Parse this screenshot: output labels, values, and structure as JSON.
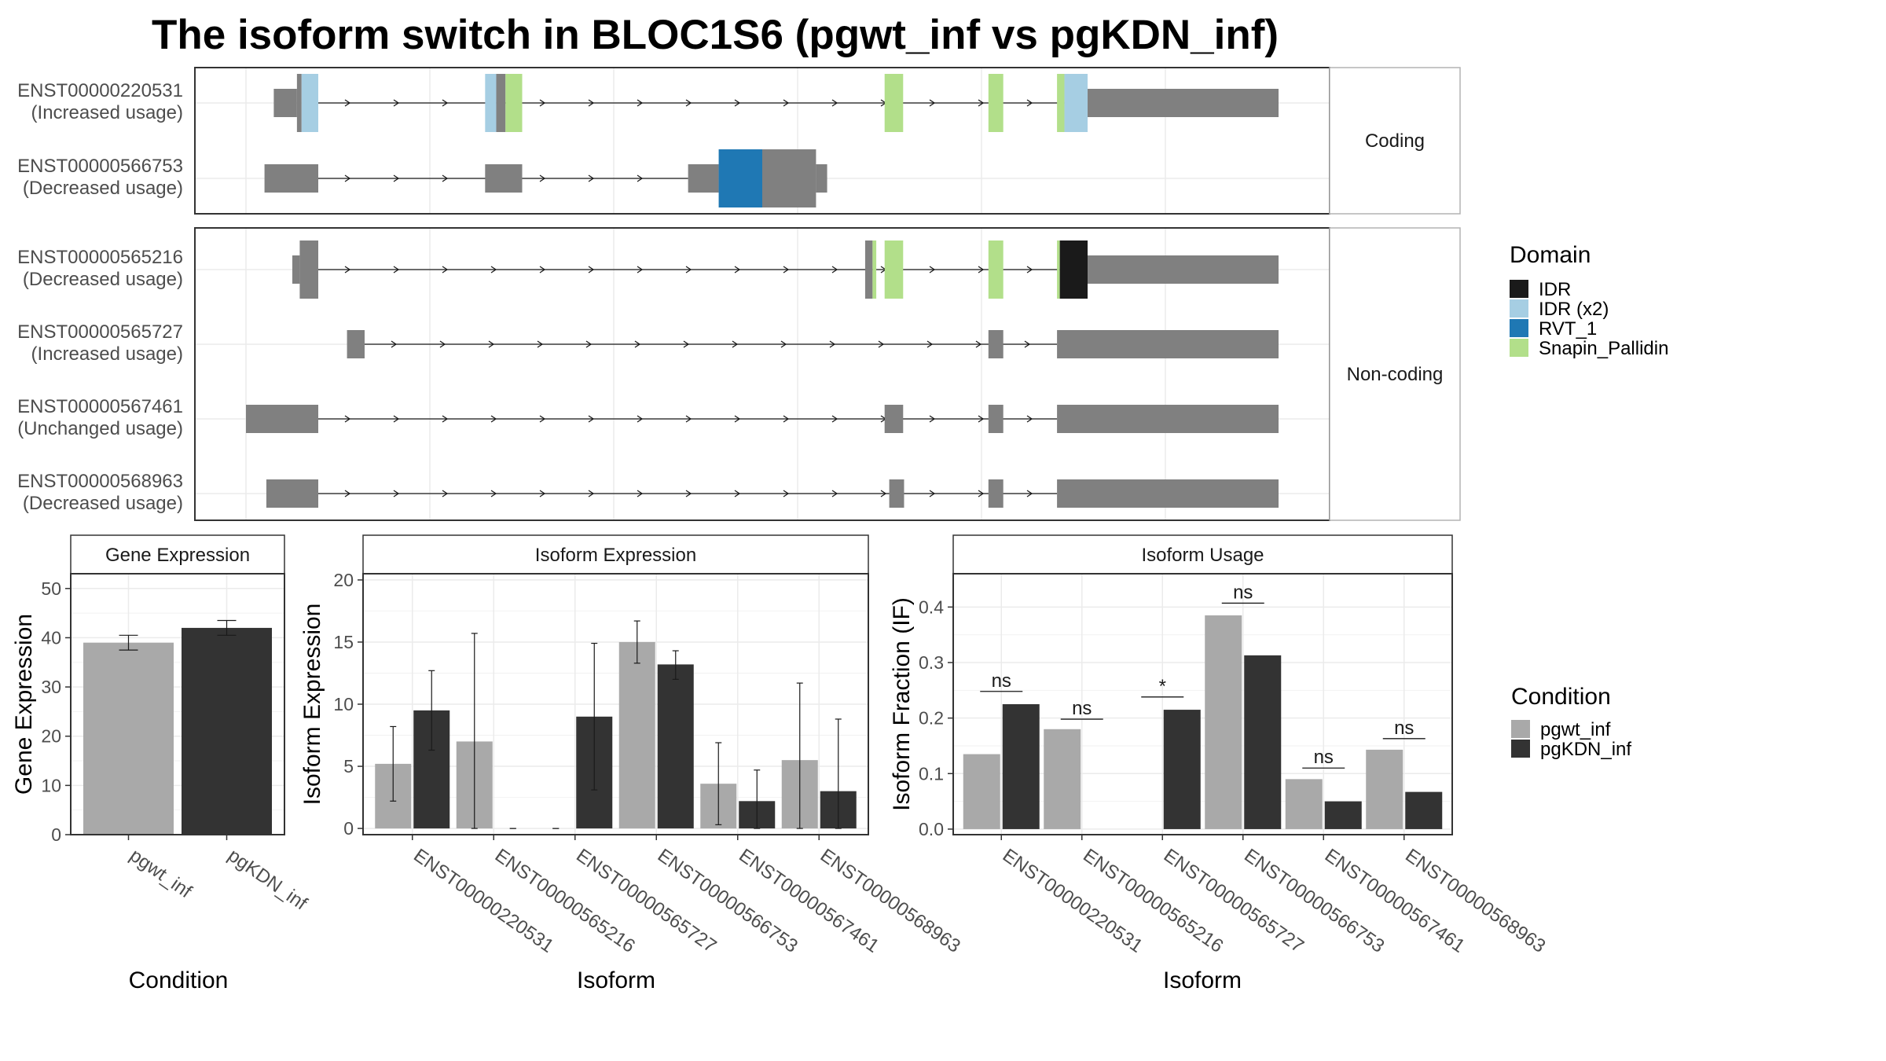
{
  "title": "The isoform switch in BLOC1S6 (pgwt_inf vs pgKDN_inf)",
  "colors": {
    "IDR": "#1a1a1a",
    "IDR (x2)": "#a6cee3",
    "RVT_1": "#1f78b4",
    "Snapin_Pallidin": "#b2df8a",
    "exon": "#808080",
    "pgwt_inf": "#a9a9a9",
    "pgKDN_inf": "#333333"
  },
  "structure": {
    "facets": [
      {
        "label": "Coding",
        "rows": [
          0,
          1
        ]
      },
      {
        "label": "Non-coding",
        "rows": [
          2,
          3,
          4,
          5
        ]
      }
    ],
    "transcripts": [
      {
        "id": "ENST00000220531",
        "usage": "(Increased usage)",
        "segments": [
          {
            "s": 30,
            "e": 55,
            "h": "half",
            "c": "exon"
          },
          {
            "s": 55,
            "e": 60,
            "h": "full",
            "c": "exon"
          },
          {
            "s": 60,
            "e": 78,
            "h": "full",
            "c": "IDR (x2)"
          },
          {
            "s": 258,
            "e": 270,
            "h": "full",
            "c": "IDR (x2)"
          },
          {
            "s": 270,
            "e": 280,
            "h": "full",
            "c": "exon"
          },
          {
            "s": 280,
            "e": 298,
            "h": "full",
            "c": "Snapin_Pallidin"
          },
          {
            "s": 689,
            "e": 709,
            "h": "full",
            "c": "Snapin_Pallidin"
          },
          {
            "s": 801,
            "e": 817,
            "h": "full",
            "c": "Snapin_Pallidin"
          },
          {
            "s": 875,
            "e": 883,
            "h": "full",
            "c": "Snapin_Pallidin"
          },
          {
            "s": 883,
            "e": 908,
            "h": "full",
            "c": "IDR (x2)"
          },
          {
            "s": 908,
            "e": 1114,
            "h": "half",
            "c": "exon"
          }
        ],
        "intron": [
          78,
          908
        ]
      },
      {
        "id": "ENST00000566753",
        "usage": "(Decreased usage)",
        "segments": [
          {
            "s": 20,
            "e": 78,
            "h": "half",
            "c": "exon"
          },
          {
            "s": 258,
            "e": 298,
            "h": "half",
            "c": "exon"
          },
          {
            "s": 477,
            "e": 510,
            "h": "half",
            "c": "exon"
          },
          {
            "s": 510,
            "e": 557,
            "h": "full",
            "c": "RVT_1"
          },
          {
            "s": 557,
            "e": 615,
            "h": "full",
            "c": "exon"
          },
          {
            "s": 615,
            "e": 627,
            "h": "half",
            "c": "exon"
          }
        ],
        "intron": [
          78,
          477
        ]
      },
      {
        "id": "ENST00000565216",
        "usage": "(Decreased usage)",
        "segments": [
          {
            "s": 50,
            "e": 58,
            "h": "half",
            "c": "exon"
          },
          {
            "s": 58,
            "e": 78,
            "h": "full",
            "c": "exon"
          },
          {
            "s": 668,
            "e": 676,
            "h": "full",
            "c": "exon"
          },
          {
            "s": 676,
            "e": 680,
            "h": "full",
            "c": "Snapin_Pallidin"
          },
          {
            "s": 689,
            "e": 709,
            "h": "full",
            "c": "Snapin_Pallidin"
          },
          {
            "s": 801,
            "e": 817,
            "h": "full",
            "c": "Snapin_Pallidin"
          },
          {
            "s": 875,
            "e": 878,
            "h": "full",
            "c": "Snapin_Pallidin"
          },
          {
            "s": 878,
            "e": 908,
            "h": "full",
            "c": "IDR"
          },
          {
            "s": 908,
            "e": 1114,
            "h": "half",
            "c": "exon"
          }
        ],
        "intron": [
          78,
          908
        ]
      },
      {
        "id": "ENST00000565727",
        "usage": "(Increased usage)",
        "segments": [
          {
            "s": 109,
            "e": 128,
            "h": "half",
            "c": "exon"
          },
          {
            "s": 801,
            "e": 817,
            "h": "half",
            "c": "exon"
          },
          {
            "s": 875,
            "e": 1114,
            "h": "half",
            "c": "exon"
          }
        ],
        "intron": [
          128,
          875
        ]
      },
      {
        "id": "ENST00000567461",
        "usage": "(Unchanged usage)",
        "segments": [
          {
            "s": 0,
            "e": 78,
            "h": "half",
            "c": "exon"
          },
          {
            "s": 689,
            "e": 709,
            "h": "half",
            "c": "exon"
          },
          {
            "s": 801,
            "e": 817,
            "h": "half",
            "c": "exon"
          },
          {
            "s": 875,
            "e": 1114,
            "h": "half",
            "c": "exon"
          }
        ],
        "intron": [
          78,
          875
        ]
      },
      {
        "id": "ENST00000568963",
        "usage": "(Decreased usage)",
        "segments": [
          {
            "s": 22,
            "e": 78,
            "h": "half",
            "c": "exon"
          },
          {
            "s": 694,
            "e": 710,
            "h": "half",
            "c": "exon"
          },
          {
            "s": 801,
            "e": 817,
            "h": "half",
            "c": "exon"
          },
          {
            "s": 875,
            "e": 1114,
            "h": "half",
            "c": "exon"
          }
        ],
        "intron": [
          78,
          875
        ]
      }
    ]
  },
  "legend_domain": {
    "title": "Domain",
    "items": [
      "IDR",
      "IDR (x2)",
      "RVT_1",
      "Snapin_Pallidin"
    ]
  },
  "legend_condition": {
    "title": "Condition",
    "items": [
      "pgwt_inf",
      "pgKDN_inf"
    ]
  },
  "chart_data": [
    {
      "type": "bar",
      "title": "Gene Expression",
      "xlabel": "Condition",
      "ylabel": "Gene Expression",
      "ylim": [
        0,
        53
      ],
      "yticks": [
        0,
        10,
        20,
        30,
        40,
        50
      ],
      "categories": [
        "pgwt_inf",
        "pgKDN_inf"
      ],
      "values": [
        39,
        42
      ],
      "errors": [
        [
          37.5,
          40.5
        ],
        [
          40.5,
          43.5
        ]
      ]
    },
    {
      "type": "bar",
      "title": "Isoform Expression",
      "xlabel": "Isoform",
      "ylabel": "Isoform Expression",
      "ylim": [
        -0.5,
        20.5
      ],
      "yticks": [
        0,
        5,
        10,
        15,
        20
      ],
      "categories": [
        "ENST00000220531",
        "ENST00000565216",
        "ENST00000565727",
        "ENST00000566753",
        "ENST00000567461",
        "ENST00000568963"
      ],
      "series": [
        {
          "name": "pgwt_inf",
          "values": [
            5.2,
            7.0,
            0,
            15.0,
            3.6,
            5.5
          ],
          "errors": [
            [
              2.2,
              8.2
            ],
            [
              0,
              15.7
            ],
            [
              0,
              0
            ],
            [
              13.3,
              16.7
            ],
            [
              0.3,
              6.9
            ],
            [
              0,
              11.7
            ]
          ]
        },
        {
          "name": "pgKDN_inf",
          "values": [
            9.5,
            0,
            9.0,
            13.2,
            2.2,
            3.0
          ],
          "errors": [
            [
              6.3,
              12.7
            ],
            [
              0,
              0
            ],
            [
              3.1,
              14.9
            ],
            [
              12.0,
              14.3
            ],
            [
              0,
              4.7
            ],
            [
              0,
              8.8
            ]
          ]
        }
      ]
    },
    {
      "type": "bar",
      "title": "Isoform Usage",
      "xlabel": "Isoform",
      "ylabel": "Isoform Fraction (IF)",
      "ylim": [
        -0.01,
        0.46
      ],
      "yticks": [
        0.0,
        0.1,
        0.2,
        0.3,
        0.4
      ],
      "tick_labels": [
        "0.0",
        "0.1",
        "0.2",
        "0.3",
        "0.4"
      ],
      "categories": [
        "ENST00000220531",
        "ENST00000565216",
        "ENST00000565727",
        "ENST00000566753",
        "ENST00000567461",
        "ENST00000568963"
      ],
      "series": [
        {
          "name": "pgwt_inf",
          "values": [
            0.135,
            0.18,
            0,
            0.385,
            0.09,
            0.143
          ]
        },
        {
          "name": "pgKDN_inf",
          "values": [
            0.225,
            0,
            0.215,
            0.313,
            0.05,
            0.067
          ]
        }
      ],
      "annotations": [
        {
          "category": 0,
          "label": "ns",
          "y": 0.248
        },
        {
          "category": 1,
          "label": "ns",
          "y": 0.198
        },
        {
          "category": 2,
          "label": "*",
          "y": 0.238
        },
        {
          "category": 3,
          "label": "ns",
          "y": 0.407
        },
        {
          "category": 4,
          "label": "ns",
          "y": 0.11
        },
        {
          "category": 5,
          "label": "ns",
          "y": 0.163
        }
      ]
    }
  ]
}
